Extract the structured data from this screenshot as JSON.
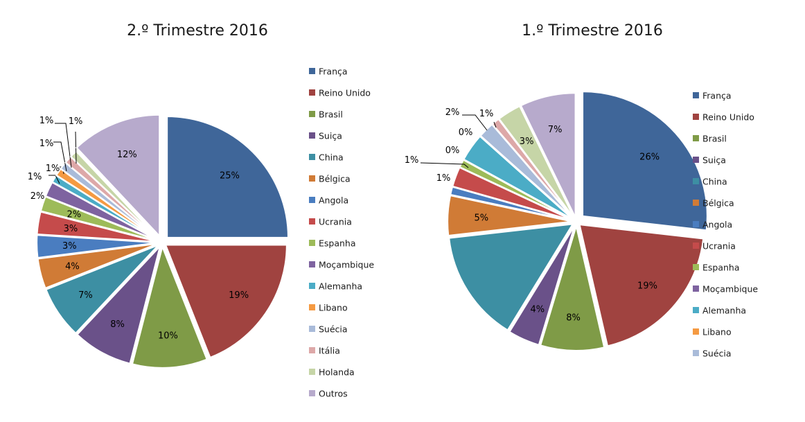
{
  "chart_data": [
    {
      "type": "pie",
      "title": "2.º Trimestre 2016",
      "legend_position": "right",
      "slices": [
        {
          "name": "França",
          "value": 25,
          "label": "25%",
          "color": "#3F6699"
        },
        {
          "name": "Reino Unido",
          "value": 19,
          "label": "19%",
          "color": "#A04340"
        },
        {
          "name": "Brasil",
          "value": 10,
          "label": "10%",
          "color": "#7F9B47"
        },
        {
          "name": "Suiça",
          "value": 8,
          "label": "8%",
          "color": "#6A5189"
        },
        {
          "name": "China",
          "value": 7,
          "label": "7%",
          "color": "#3D8FA3"
        },
        {
          "name": "Bélgica",
          "value": 4,
          "label": "4%",
          "color": "#D07B36"
        },
        {
          "name": "Angola",
          "value": 3,
          "label": "3%",
          "color": "#4A7DC0"
        },
        {
          "name": "Ucrania",
          "value": 3,
          "label": "3%",
          "color": "#C54B4B"
        },
        {
          "name": "Espanha",
          "value": 2,
          "label": "2%",
          "color": "#9DBB59"
        },
        {
          "name": "Moçambique",
          "value": 2,
          "label": "2%",
          "color": "#7E63A0"
        },
        {
          "name": "Alemanha",
          "value": 1,
          "label": "1%",
          "color": "#4BACC6"
        },
        {
          "name": "Libano",
          "value": 1,
          "label": "1%",
          "color": "#F59A42"
        },
        {
          "name": "Suécia",
          "value": 1,
          "label": "1%",
          "color": "#A9BBD9"
        },
        {
          "name": "Itália",
          "value": 1,
          "label": "1%",
          "color": "#DDA8A8"
        },
        {
          "name": "Holanda",
          "value": 1,
          "label": "1%",
          "color": "#C6D5A7"
        },
        {
          "name": "Outros",
          "value": 12,
          "label": "12%",
          "color": "#B7AACC"
        }
      ]
    },
    {
      "type": "pie",
      "title": "1.º Trimestre 2016",
      "legend_position": "right",
      "slices": [
        {
          "name": "França",
          "value": 26,
          "label": "26%",
          "color": "#3F6699"
        },
        {
          "name": "Reino Unido",
          "value": 19,
          "label": "19%",
          "color": "#A04340"
        },
        {
          "name": "Brasil",
          "value": 8,
          "label": "8%",
          "color": "#7F9B47"
        },
        {
          "name": "Suiça",
          "value": 4,
          "label": "4%",
          "color": "#6A5189"
        },
        {
          "name": "China",
          "value": 14,
          "label": "",
          "color": "#3D8FA3"
        },
        {
          "name": "Bélgica",
          "value": 5,
          "label": "5%",
          "color": "#D07B36"
        },
        {
          "name": "Angola",
          "value": 1,
          "label": "1%",
          "color": "#4A7DC0"
        },
        {
          "name": "Ucrania",
          "value": 2.5,
          "label": "",
          "color": "#C54B4B"
        },
        {
          "name": "Espanha",
          "value": 1,
          "label": "1%",
          "color": "#9DBB59"
        },
        {
          "name": "Moçambique",
          "value": 0,
          "label": "0%",
          "color": "#7E63A0"
        },
        {
          "name": "Alemanha",
          "value": 3.5,
          "label": "",
          "color": "#4BACC6"
        },
        {
          "name": "Libano",
          "value": 0,
          "label": "0%",
          "color": "#F59A42"
        },
        {
          "name": "Suécia",
          "value": 2,
          "label": "2%",
          "color": "#A9BBD9"
        },
        {
          "name": "Itália",
          "value": 1,
          "label": "1%",
          "color": "#DDA8A8"
        },
        {
          "name": "Holanda",
          "value": 3,
          "label": "3%",
          "color": "#C6D5A7"
        },
        {
          "name": "Outros",
          "value": 7,
          "label": "7%",
          "color": "#B7AACC"
        }
      ]
    }
  ]
}
